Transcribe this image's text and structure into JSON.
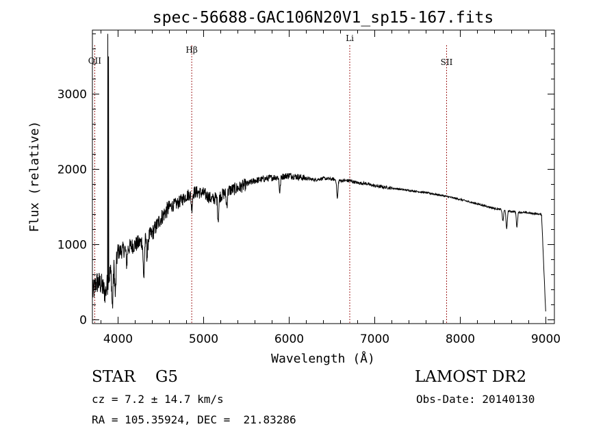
{
  "chart_data": {
    "type": "line",
    "title": "spec-56688-GAC106N20V1_sp15-167.fits",
    "xlabel": "Wavelength (Å)",
    "ylabel": "Flux (relative)",
    "xlim": [
      3700,
      9100
    ],
    "ylim": [
      -50,
      3850
    ],
    "xticks": [
      4000,
      5000,
      6000,
      7000,
      8000,
      9000
    ],
    "yticks": [
      0,
      1000,
      2000,
      3000
    ],
    "grid": false,
    "lines": [
      {
        "label": "OII",
        "x": 3727
      },
      {
        "label": "Hβ",
        "x": 4861
      },
      {
        "label": "Li",
        "x": 6708
      },
      {
        "label": "SII",
        "x": 7840
      }
    ],
    "spikes": [
      {
        "x": 3880,
        "y": 3800
      },
      {
        "x": 3890,
        "y": 3500
      }
    ],
    "continuum": {
      "x": [
        3700,
        3750,
        3800,
        3850,
        3900,
        3950,
        4000,
        4100,
        4200,
        4300,
        4400,
        4500,
        4600,
        4700,
        4800,
        4900,
        5000,
        5100,
        5200,
        5300,
        5400,
        5500,
        5600,
        5700,
        5800,
        5900,
        6000,
        6100,
        6200,
        6300,
        6400,
        6500,
        6600,
        6700,
        6800,
        6900,
        7000,
        7200,
        7400,
        7600,
        7800,
        8000,
        8200,
        8400,
        8600,
        8800,
        8950,
        9000
      ],
      "y": [
        350,
        500,
        480,
        350,
        600,
        700,
        900,
        950,
        1000,
        1050,
        1150,
        1350,
        1500,
        1550,
        1650,
        1700,
        1680,
        1600,
        1650,
        1720,
        1750,
        1800,
        1850,
        1870,
        1890,
        1900,
        1920,
        1900,
        1880,
        1860,
        1880,
        1870,
        1850,
        1850,
        1820,
        1810,
        1780,
        1750,
        1720,
        1690,
        1650,
        1600,
        1540,
        1480,
        1440,
        1420,
        1400,
        50
      ]
    },
    "absorptions": [
      {
        "x": 3934,
        "depth": 500
      },
      {
        "x": 3969,
        "depth": 450
      },
      {
        "x": 4101,
        "depth": 200
      },
      {
        "x": 4300,
        "depth": 500
      },
      {
        "x": 4340,
        "depth": 250
      },
      {
        "x": 4861,
        "depth": 200
      },
      {
        "x": 5170,
        "depth": 300
      },
      {
        "x": 5270,
        "depth": 180
      },
      {
        "x": 5890,
        "depth": 200
      },
      {
        "x": 6563,
        "depth": 250
      },
      {
        "x": 8498,
        "depth": 150
      },
      {
        "x": 8542,
        "depth": 250
      },
      {
        "x": 8662,
        "depth": 200
      }
    ]
  },
  "info": {
    "object": "STAR    G5",
    "survey": "LAMOST DR2",
    "redshift": "cz = 7.2 ± 14.7 km/s",
    "obs_date": "Obs-Date: 20140130",
    "coords": "RA = 105.35924, DEC =  21.83286"
  }
}
